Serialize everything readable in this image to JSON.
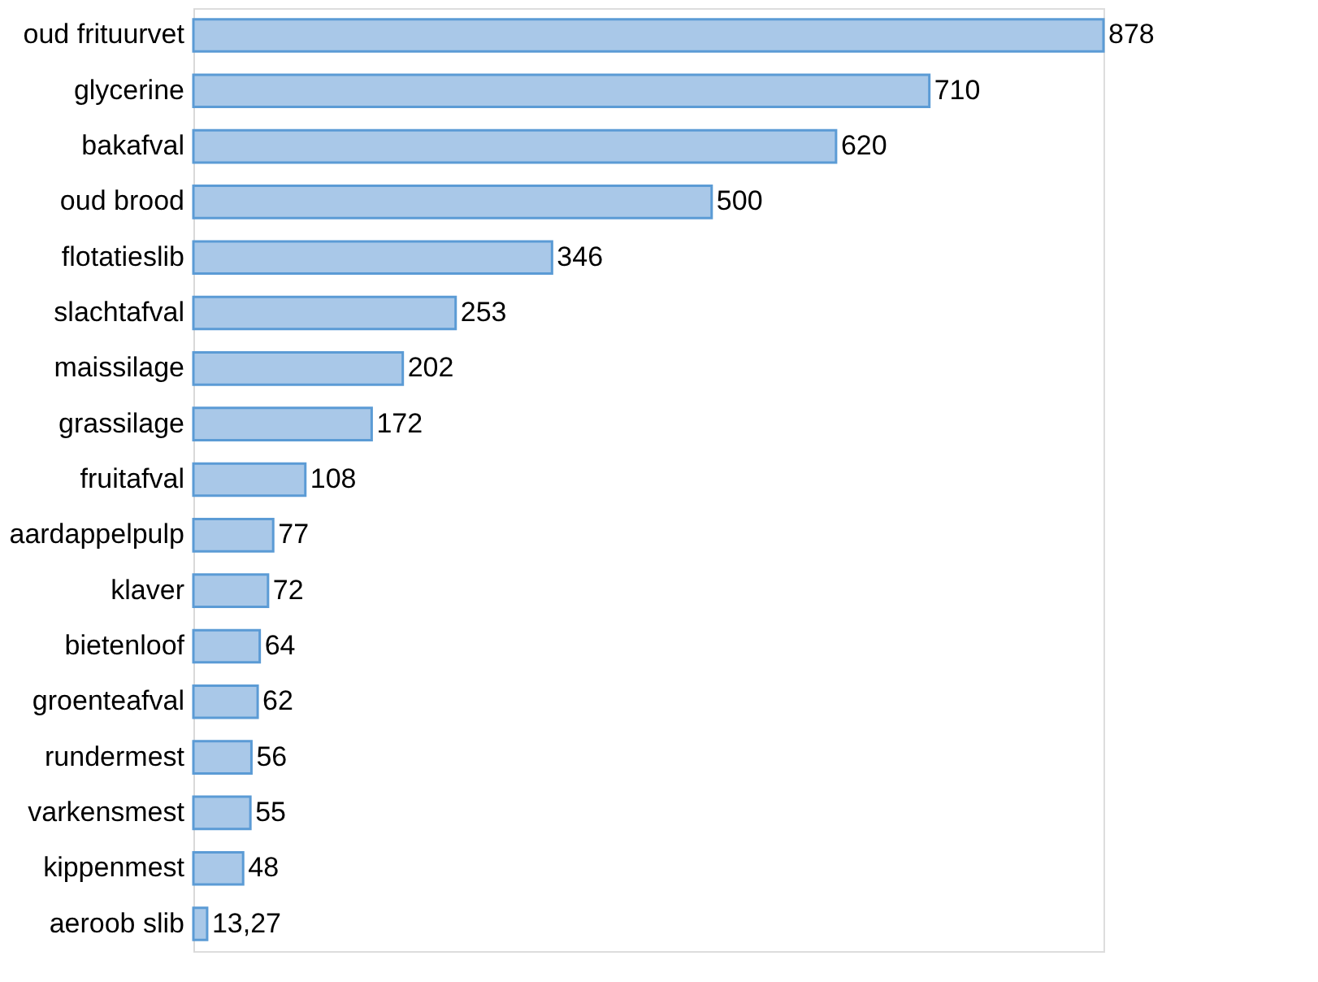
{
  "chart_data": {
    "type": "bar",
    "orientation": "horizontal",
    "categories": [
      "oud frituurvet",
      "glycerine",
      "bakafval",
      "oud brood",
      "flotatieslib",
      "slachtafval",
      "maissilage",
      "grassilage",
      "fruitafval",
      "aardappelpulp",
      "klaver",
      "bietenloof",
      "groenteafval",
      "rundermest",
      "varkensmest",
      "kippenmest",
      "aeroob slib"
    ],
    "values": [
      878,
      710,
      620,
      500,
      346,
      253,
      202,
      172,
      108,
      77,
      72,
      64,
      62,
      56,
      55,
      48,
      13.27
    ],
    "value_labels": [
      "878",
      "710",
      "620",
      "500",
      "346",
      "253",
      "202",
      "172",
      "108",
      "77",
      "72",
      "64",
      "62",
      "56",
      "55",
      "48",
      "13,27"
    ],
    "color": "#a9c8e8",
    "grid": false
  }
}
